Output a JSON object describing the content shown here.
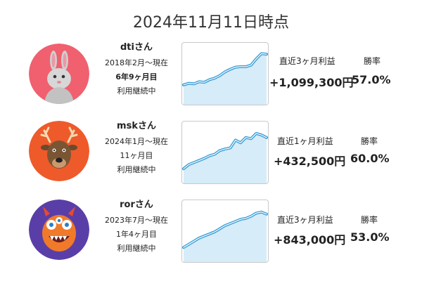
{
  "header": {
    "title": "2024年11月11日時点"
  },
  "colors": {
    "line": "#3b9fd6",
    "fill": "#d6ecf8",
    "border": "#c9c9c9"
  },
  "users": [
    {
      "name": "dtiさん",
      "since": "2018年2月〜現在",
      "duration": "6年9ヶ月目",
      "status": "利用継続中",
      "avatar_icon": "rabbit-icon",
      "avatar_bg": "#f0606f",
      "profit_label": "直近3ヶ月利益",
      "profit_value": "+1,099,300円",
      "winrate_label": "勝率",
      "winrate_value": "57.0%",
      "trend": [
        0.3,
        0.33,
        0.32,
        0.36,
        0.35,
        0.4,
        0.43,
        0.48,
        0.55,
        0.6,
        0.64,
        0.65,
        0.65,
        0.68,
        0.8,
        0.9,
        0.89
      ]
    },
    {
      "name": "mskさん",
      "since": "2024年1月〜現在",
      "duration": "11ヶ月目",
      "status": "利用継続中",
      "avatar_icon": "reindeer-icon",
      "avatar_bg": "#ef5a2a",
      "profit_label": "直近1ヶ月利益",
      "profit_value": "+432,500円",
      "winrate_label": "勝率",
      "winrate_value": "60.0%",
      "trend": [
        0.2,
        0.28,
        0.32,
        0.36,
        0.4,
        0.45,
        0.48,
        0.55,
        0.58,
        0.6,
        0.75,
        0.7,
        0.8,
        0.78,
        0.88,
        0.85,
        0.8
      ]
    },
    {
      "name": "rorさん",
      "since": "2023年7月〜現在",
      "duration": "1年4ヶ月目",
      "status": "利用継続中",
      "avatar_icon": "monster-icon",
      "avatar_bg": "#5a3ea8",
      "profit_label": "直近3ヶ月利益",
      "profit_value": "+843,000円",
      "winrate_label": "勝率",
      "winrate_value": "53.0%",
      "trend": [
        0.2,
        0.26,
        0.32,
        0.38,
        0.42,
        0.46,
        0.5,
        0.56,
        0.62,
        0.66,
        0.7,
        0.74,
        0.76,
        0.8,
        0.86,
        0.88,
        0.84
      ]
    }
  ]
}
